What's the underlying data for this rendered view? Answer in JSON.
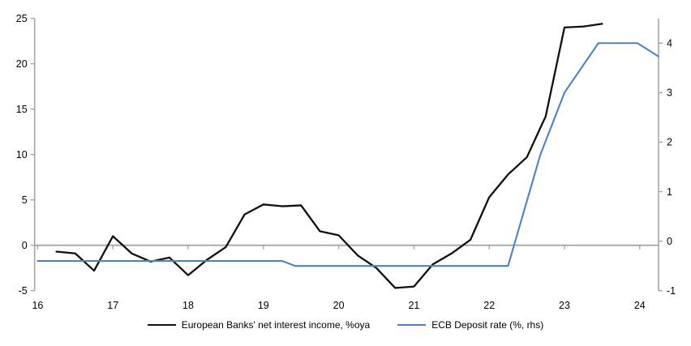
{
  "chart_data": {
    "type": "line",
    "title": "",
    "x_axis": {
      "range": [
        15.96,
        24.25
      ],
      "tick_values": [
        16,
        17,
        18,
        19,
        20,
        21,
        22,
        23,
        24
      ],
      "tick_labels": [
        "16",
        "17",
        "18",
        "19",
        "20",
        "21",
        "22",
        "23",
        "24"
      ]
    },
    "left_axis": {
      "range": [
        -5,
        25
      ],
      "tick_values": [
        -5,
        0,
        5,
        10,
        15,
        20,
        25
      ],
      "tick_labels": [
        "-5",
        "0",
        "5",
        "10",
        "15",
        "20",
        "25"
      ]
    },
    "right_axis": {
      "range": [
        -1,
        4.5
      ],
      "tick_values": [
        -1,
        0,
        1,
        2,
        3,
        4
      ],
      "tick_labels": [
        "-1",
        "0",
        "1",
        "2",
        "3",
        "4"
      ]
    },
    "grid": "zero-line-only",
    "legend_position": "bottom-center",
    "colors": {
      "axis": "#a6a6a6",
      "text": "#000000",
      "background": "#ffffff"
    },
    "series": [
      {
        "id": "european-banks-net-interest-income",
        "name": "European Banks' net interest income, %oya",
        "axis": "left",
        "color": "#101010",
        "stroke_width": 2.3,
        "points": [
          [
            16.25,
            -0.7
          ],
          [
            16.5,
            -0.9
          ],
          [
            16.75,
            -2.8
          ],
          [
            17.0,
            1.0
          ],
          [
            17.25,
            -0.9
          ],
          [
            17.5,
            -1.8
          ],
          [
            17.75,
            -1.35
          ],
          [
            18.0,
            -3.3
          ],
          [
            18.25,
            -1.6
          ],
          [
            18.5,
            -0.2
          ],
          [
            18.75,
            3.4
          ],
          [
            19.0,
            4.5
          ],
          [
            19.25,
            4.3
          ],
          [
            19.5,
            4.4
          ],
          [
            19.75,
            1.55
          ],
          [
            20.0,
            1.1
          ],
          [
            20.25,
            -1.1
          ],
          [
            20.5,
            -2.5
          ],
          [
            20.75,
            -4.7
          ],
          [
            21.0,
            -4.55
          ],
          [
            21.25,
            -2.1
          ],
          [
            21.5,
            -0.9
          ],
          [
            21.75,
            0.6
          ],
          [
            22.0,
            5.3
          ],
          [
            22.25,
            7.8
          ],
          [
            22.5,
            9.7
          ],
          [
            22.75,
            14.2
          ],
          [
            23.0,
            24.0
          ],
          [
            23.25,
            24.1
          ],
          [
            23.5,
            24.4
          ]
        ]
      },
      {
        "id": "ecb-deposit-rate",
        "name": "ECB Deposit rate (%, rhs)",
        "axis": "right",
        "color": "#4e81bd",
        "stroke_width": 2.1,
        "points": [
          [
            16.0,
            -0.4
          ],
          [
            19.25,
            -0.4
          ],
          [
            19.42,
            -0.5
          ],
          [
            22.25,
            -0.5
          ],
          [
            22.68,
            1.75
          ],
          [
            23.0,
            3.0
          ],
          [
            23.45,
            4.0
          ],
          [
            23.97,
            4.0
          ],
          [
            24.25,
            3.73
          ]
        ]
      }
    ]
  }
}
